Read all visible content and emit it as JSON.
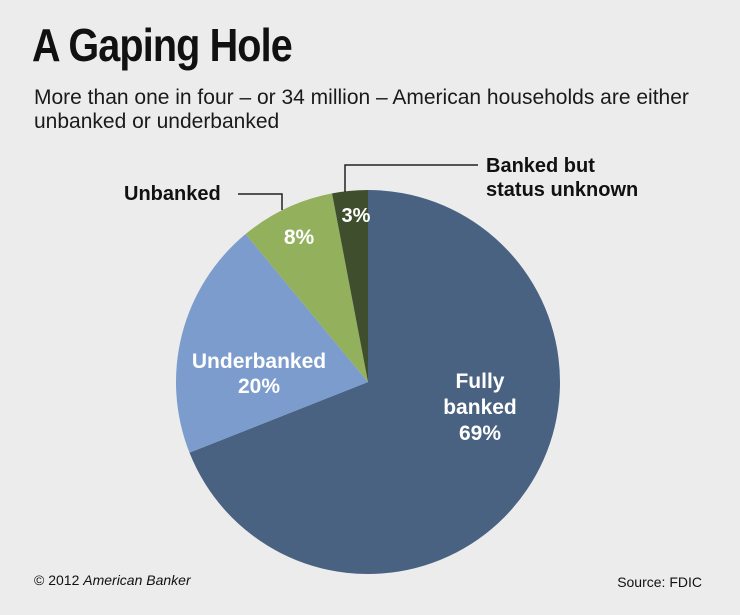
{
  "header": {
    "title": "A Gaping Hole",
    "subtitle": "More than one in four – or 34 million – American households are either unbanked or underbanked"
  },
  "chart_data": {
    "type": "pie",
    "unit": "%",
    "slices": [
      {
        "name": "Fully banked",
        "label_lines": [
          "Fully",
          "banked",
          "69%"
        ],
        "value": 69,
        "color": "#4a6282",
        "label_position": "inside"
      },
      {
        "name": "Underbanked",
        "label_lines": [
          "Underbanked",
          "20%"
        ],
        "value": 20,
        "color": "#7b9ccc",
        "label_position": "inside"
      },
      {
        "name": "Unbanked",
        "label_lines": [
          "8%"
        ],
        "callout_lines": [
          "Unbanked"
        ],
        "value": 8,
        "color": "#93b05d",
        "label_position": "inside-with-callout"
      },
      {
        "name": "Banked but status unknown",
        "label_lines": [
          "3%"
        ],
        "callout_lines": [
          "Banked but",
          "status unknown"
        ],
        "value": 3,
        "color": "#3f4e2c",
        "label_position": "inside-with-callout"
      }
    ],
    "start_angle": "12 o'clock",
    "direction": "clockwise"
  },
  "footer": {
    "copyright_prefix": "© 2012 ",
    "copyright_brand": "American Banker",
    "source": "Source: FDIC"
  }
}
